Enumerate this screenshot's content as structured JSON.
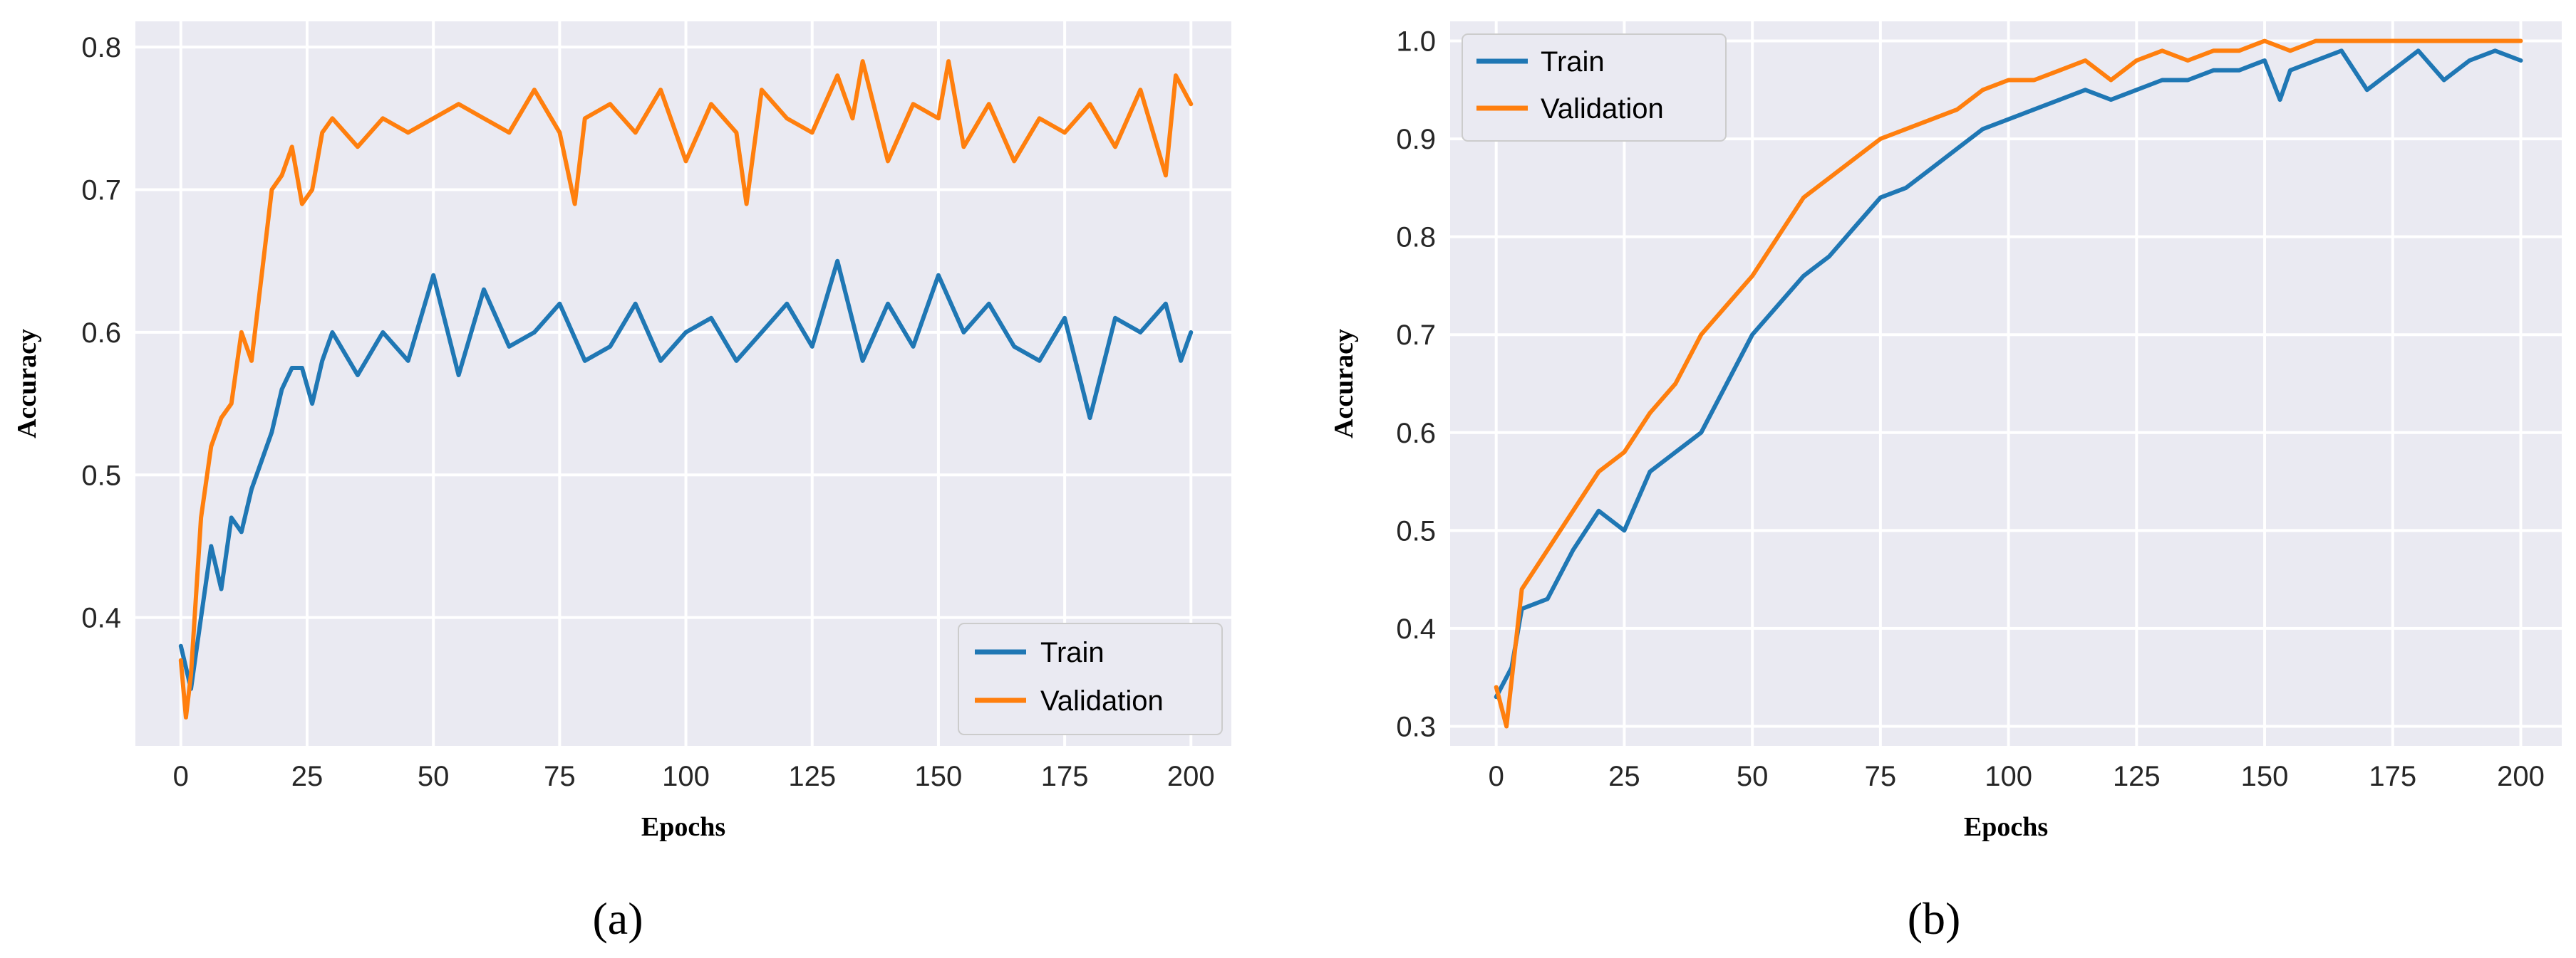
{
  "colors": {
    "train": "#1f77b4",
    "validation": "#ff7f0e",
    "panel_bg": "#eaeaf2",
    "grid": "#ffffff",
    "text": "#262626"
  },
  "chart_data": [
    {
      "type": "line",
      "caption": "(a)",
      "title": "",
      "xlabel": "Epochs",
      "ylabel": "Accuracy",
      "xlim": [
        -9,
        208
      ],
      "ylim": [
        0.31,
        0.818
      ],
      "xticks": [
        0,
        25,
        50,
        75,
        100,
        125,
        150,
        175,
        200
      ],
      "yticks": [
        0.4,
        0.5,
        0.6,
        0.7,
        0.8
      ],
      "xtick_labels": [
        "0",
        "25",
        "50",
        "75",
        "100",
        "125",
        "150",
        "175",
        "200"
      ],
      "ytick_labels": [
        "0.4",
        "0.5",
        "0.6",
        "0.7",
        "0.8"
      ],
      "grid": true,
      "legend": {
        "placement": "bottom-right",
        "entries": [
          "Train",
          "Validation"
        ]
      },
      "series": [
        {
          "name": "Train",
          "x": [
            0,
            2,
            4,
            6,
            8,
            10,
            12,
            14,
            16,
            18,
            20,
            22,
            24,
            26,
            28,
            30,
            35,
            40,
            45,
            50,
            55,
            60,
            65,
            70,
            75,
            80,
            85,
            90,
            95,
            100,
            105,
            110,
            115,
            120,
            125,
            130,
            135,
            140,
            145,
            150,
            155,
            160,
            165,
            170,
            175,
            180,
            185,
            190,
            195,
            198,
            200
          ],
          "values": [
            0.38,
            0.35,
            0.4,
            0.45,
            0.42,
            0.47,
            0.46,
            0.49,
            0.51,
            0.53,
            0.56,
            0.575,
            0.575,
            0.55,
            0.58,
            0.6,
            0.57,
            0.6,
            0.58,
            0.64,
            0.57,
            0.63,
            0.59,
            0.6,
            0.62,
            0.58,
            0.59,
            0.62,
            0.58,
            0.6,
            0.61,
            0.58,
            0.6,
            0.62,
            0.59,
            0.65,
            0.58,
            0.62,
            0.59,
            0.64,
            0.6,
            0.62,
            0.59,
            0.58,
            0.61,
            0.54,
            0.61,
            0.6,
            0.62,
            0.58,
            0.6
          ]
        },
        {
          "name": "Validation",
          "x": [
            0,
            1,
            2,
            4,
            6,
            8,
            10,
            12,
            14,
            16,
            18,
            20,
            22,
            24,
            26,
            28,
            30,
            35,
            40,
            45,
            50,
            55,
            60,
            65,
            70,
            75,
            78,
            80,
            85,
            90,
            95,
            100,
            105,
            110,
            112,
            115,
            120,
            125,
            130,
            133,
            135,
            140,
            145,
            150,
            152,
            155,
            160,
            165,
            170,
            175,
            180,
            185,
            190,
            195,
            197,
            200
          ],
          "values": [
            0.37,
            0.33,
            0.36,
            0.47,
            0.52,
            0.54,
            0.55,
            0.6,
            0.58,
            0.64,
            0.7,
            0.71,
            0.73,
            0.69,
            0.7,
            0.74,
            0.75,
            0.73,
            0.75,
            0.74,
            0.75,
            0.76,
            0.75,
            0.74,
            0.77,
            0.74,
            0.69,
            0.75,
            0.76,
            0.74,
            0.77,
            0.72,
            0.76,
            0.74,
            0.69,
            0.77,
            0.75,
            0.74,
            0.78,
            0.75,
            0.79,
            0.72,
            0.76,
            0.75,
            0.79,
            0.73,
            0.76,
            0.72,
            0.75,
            0.74,
            0.76,
            0.73,
            0.77,
            0.71,
            0.78,
            0.76
          ]
        }
      ]
    },
    {
      "type": "line",
      "caption": "(b)",
      "title": "",
      "xlabel": "Epochs",
      "ylabel": "Accuracy",
      "xlim": [
        -9,
        208
      ],
      "ylim": [
        0.28,
        1.02
      ],
      "xticks": [
        0,
        25,
        50,
        75,
        100,
        125,
        150,
        175,
        200
      ],
      "yticks": [
        0.3,
        0.4,
        0.5,
        0.6,
        0.7,
        0.8,
        0.9,
        1.0
      ],
      "xtick_labels": [
        "0",
        "25",
        "50",
        "75",
        "100",
        "125",
        "150",
        "175",
        "200"
      ],
      "ytick_labels": [
        "0.3",
        "0.4",
        "0.5",
        "0.6",
        "0.7",
        "0.8",
        "0.9",
        "1.0"
      ],
      "grid": true,
      "legend": {
        "placement": "top-left",
        "entries": [
          "Train",
          "Validation"
        ]
      },
      "series": [
        {
          "name": "Train",
          "x": [
            0,
            3,
            5,
            10,
            15,
            20,
            25,
            30,
            35,
            40,
            45,
            50,
            55,
            60,
            65,
            70,
            75,
            80,
            85,
            90,
            95,
            100,
            105,
            110,
            115,
            120,
            125,
            130,
            135,
            140,
            145,
            150,
            153,
            155,
            160,
            165,
            170,
            175,
            180,
            185,
            190,
            195,
            200
          ],
          "values": [
            0.33,
            0.36,
            0.42,
            0.43,
            0.48,
            0.52,
            0.5,
            0.56,
            0.58,
            0.6,
            0.65,
            0.7,
            0.73,
            0.76,
            0.78,
            0.81,
            0.84,
            0.85,
            0.87,
            0.89,
            0.91,
            0.92,
            0.93,
            0.94,
            0.95,
            0.94,
            0.95,
            0.96,
            0.96,
            0.97,
            0.97,
            0.98,
            0.94,
            0.97,
            0.98,
            0.99,
            0.95,
            0.97,
            0.99,
            0.96,
            0.98,
            0.99,
            0.98
          ]
        },
        {
          "name": "Validation",
          "x": [
            0,
            2,
            5,
            10,
            15,
            20,
            25,
            30,
            35,
            40,
            45,
            50,
            55,
            60,
            65,
            70,
            75,
            80,
            85,
            90,
            95,
            100,
            105,
            110,
            115,
            120,
            125,
            130,
            135,
            140,
            145,
            150,
            155,
            160,
            165,
            170,
            175,
            180,
            185,
            190,
            195,
            200
          ],
          "values": [
            0.34,
            0.3,
            0.44,
            0.48,
            0.52,
            0.56,
            0.58,
            0.62,
            0.65,
            0.7,
            0.73,
            0.76,
            0.8,
            0.84,
            0.86,
            0.88,
            0.9,
            0.91,
            0.92,
            0.93,
            0.95,
            0.96,
            0.96,
            0.97,
            0.98,
            0.96,
            0.98,
            0.99,
            0.98,
            0.99,
            0.99,
            1.0,
            0.99,
            1.0,
            1.0,
            1.0,
            1.0,
            1.0,
            1.0,
            1.0,
            1.0,
            1.0
          ]
        }
      ]
    }
  ]
}
